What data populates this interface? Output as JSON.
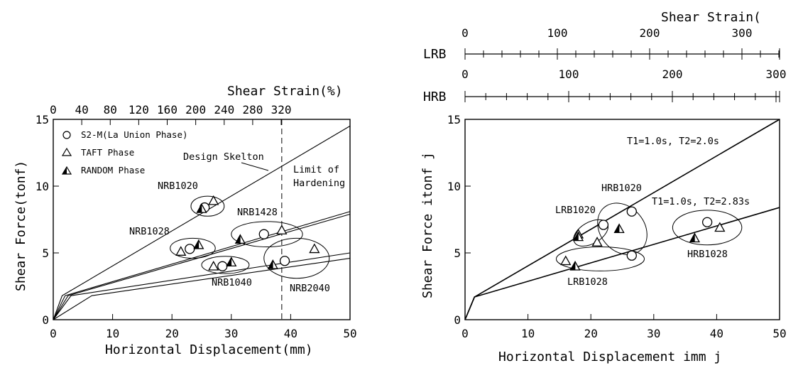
{
  "chart_data": [
    {
      "type": "scatter",
      "xlabel": "Horizontal Displacement(mm)",
      "ylabel": "Shear Force(tonf)",
      "top_axis_label": "Shear Strain(%)",
      "xlim": [
        0,
        50
      ],
      "ylim": [
        0,
        15
      ],
      "xticks": [
        "0",
        "10",
        "20",
        "30",
        "40",
        "50"
      ],
      "yticks": [
        "0",
        "5",
        "10",
        "15"
      ],
      "top_ticks": [
        "0",
        "40",
        "80",
        "120",
        "160",
        "200",
        "240",
        "280",
        "320"
      ],
      "grid": false,
      "legend": [
        {
          "marker": "circle",
          "text": "S2-M(La Union Phase)"
        },
        {
          "marker": "triangle",
          "text": "TAFT Phase"
        },
        {
          "marker": "half-filled-triangle",
          "text": "RANDOM Phase"
        }
      ],
      "series": [
        {
          "name": "S2-M(La Union Phase)",
          "marker": "circle",
          "points": [
            [
              25.5,
              8.4
            ],
            [
              23,
              5.3
            ],
            [
              28.5,
              4.0
            ],
            [
              35.5,
              6.4
            ],
            [
              39,
              4.4
            ]
          ]
        },
        {
          "name": "TAFT Phase",
          "marker": "triangle",
          "points": [
            [
              27,
              8.9
            ],
            [
              21.5,
              5.1
            ],
            [
              27,
              4.0
            ],
            [
              38.5,
              6.7
            ],
            [
              44,
              5.3
            ]
          ]
        },
        {
          "name": "RANDOM Phase",
          "marker": "half-filled-triangle",
          "points": [
            [
              25,
              8.3
            ],
            [
              24.5,
              5.6
            ],
            [
              30,
              4.3
            ],
            [
              31.5,
              6.0
            ],
            [
              37,
              4.1
            ]
          ]
        }
      ],
      "skeleton_lines": [
        [
          [
            0,
            0
          ],
          [
            1.5,
            1.8
          ],
          [
            50,
            14.5
          ]
        ],
        [
          [
            0,
            0
          ],
          [
            2,
            1.8
          ],
          [
            50,
            8.1
          ]
        ],
        [
          [
            0,
            0
          ],
          [
            2.5,
            1.8
          ],
          [
            50,
            7.9
          ]
        ],
        [
          [
            0,
            0
          ],
          [
            3,
            1.8
          ],
          [
            50,
            5.0
          ]
        ],
        [
          [
            0,
            0
          ],
          [
            6.5,
            1.8
          ],
          [
            50,
            4.6
          ]
        ]
      ],
      "limit_line_x": 38.5,
      "annotations": [
        "Design Skelton",
        "Limit of",
        "Hardening"
      ],
      "groups": [
        {
          "label": "NRB1020",
          "cx": 26,
          "cy": 8.5,
          "rx": 2.8,
          "ry": 0.75
        },
        {
          "label": "NRB1428",
          "cx": 36,
          "cy": 6.4,
          "rx": 6,
          "ry": 0.95
        },
        {
          "label": "NRB1028",
          "cx": 23.5,
          "cy": 5.35,
          "rx": 3.8,
          "ry": 0.75
        },
        {
          "label": "NRB1040",
          "cx": 29,
          "cy": 4.1,
          "rx": 4,
          "ry": 0.65
        },
        {
          "label": "NRB2040",
          "cx": 41,
          "cy": 4.6,
          "rx": 5.5,
          "ry": 1.5
        }
      ]
    },
    {
      "type": "scatter",
      "xlabel": "Horizontal Displacement imm j",
      "ylabel": "Shear Force itonf j",
      "top_axes": [
        {
          "name": "LRB",
          "label": "Shear Strain(",
          "ticks": [
            "0",
            "100",
            "200",
            "300"
          ]
        },
        {
          "name": "HRB",
          "ticks": [
            "0",
            "100",
            "200",
            "300"
          ]
        }
      ],
      "xlim": [
        0,
        50
      ],
      "ylim": [
        0,
        15
      ],
      "xticks": [
        "0",
        "10",
        "20",
        "30",
        "40",
        "50"
      ],
      "yticks": [
        "0",
        "5",
        "10",
        "15"
      ],
      "grid": false,
      "series": [
        {
          "name": "S2-M(La Union Phase)",
          "marker": "circle",
          "points": [
            [
              22,
              7.1
            ],
            [
              26.5,
              8.1
            ],
            [
              26.5,
              4.8
            ],
            [
              38.5,
              7.3
            ]
          ]
        },
        {
          "name": "TAFT Phase",
          "marker": "triangle",
          "points": [
            [
              18,
              6.4
            ],
            [
              21,
              5.8
            ],
            [
              16,
              4.4
            ],
            [
              40.5,
              6.9
            ]
          ]
        },
        {
          "name": "RANDOM Phase",
          "marker": "half-filled-triangle",
          "points": [
            [
              18,
              6.2
            ],
            [
              24.5,
              6.8
            ],
            [
              17.5,
              4.0
            ],
            [
              36.5,
              6.1
            ]
          ]
        }
      ],
      "skeleton_lines": [
        [
          [
            0,
            0
          ],
          [
            1.5,
            1.7
          ],
          [
            50,
            15
          ]
        ],
        [
          [
            0,
            0
          ],
          [
            1.5,
            1.7
          ],
          [
            50,
            8.4
          ]
        ]
      ],
      "annotations": [
        "T1=1.0s, T2=2.0s",
        "T1=1.0s, T2=2.83s"
      ],
      "groups": [
        {
          "label": "LRB1020",
          "cx": 20,
          "cy": 6.5,
          "rx": 3,
          "ry": 0.8,
          "rot": -30
        },
        {
          "label": "HRB1020",
          "cx": 25,
          "cy": 6.8,
          "rx": 3.5,
          "ry": 2.1,
          "rot": -40
        },
        {
          "label": "LRB1028",
          "cx": 21.5,
          "cy": 4.55,
          "rx": 7,
          "ry": 0.9
        },
        {
          "label": "HRB1028",
          "cx": 38.5,
          "cy": 6.9,
          "rx": 5.5,
          "ry": 1.3
        }
      ]
    }
  ]
}
